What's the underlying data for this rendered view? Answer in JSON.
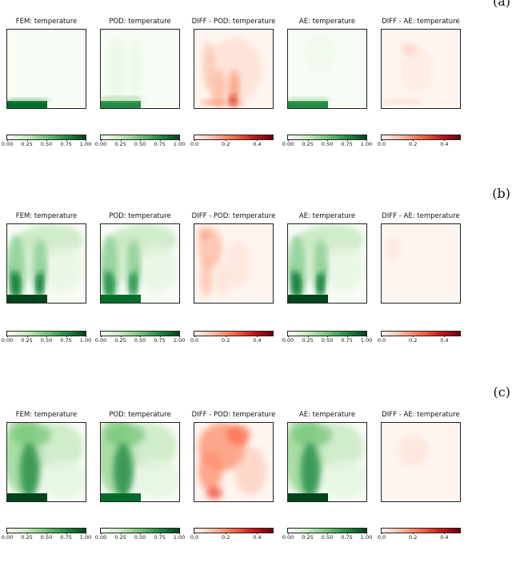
{
  "rows": [
    {
      "label": "(a)",
      "panels": [
        {
          "title": "FEM: temperature",
          "cmap": "green",
          "ticks": [
            "0.00",
            "0.25",
            "0.50",
            "0.75",
            "1.00"
          ],
          "pattern": "a-fem"
        },
        {
          "title": "POD: temperature",
          "cmap": "green",
          "ticks": [
            "0.00",
            "0.25",
            "0.50",
            "0.75",
            "1.00"
          ],
          "pattern": "a-pod"
        },
        {
          "title": "DIFF - POD: temperature",
          "cmap": "red",
          "ticks": [
            "0.0",
            "0.2",
            "0.4"
          ],
          "pattern": "a-diffpod"
        },
        {
          "title": "AE: temperature",
          "cmap": "green",
          "ticks": [
            "0.00",
            "0.25",
            "0.50",
            "0.75",
            "1.00"
          ],
          "pattern": "a-ae"
        },
        {
          "title": "DIFF - AE: temperature",
          "cmap": "red",
          "ticks": [
            "0.0",
            "0.2",
            "0.4"
          ],
          "pattern": "a-diffae"
        }
      ]
    },
    {
      "label": "(b)",
      "panels": [
        {
          "title": "FEM: temperature",
          "cmap": "green",
          "ticks": [
            "0.00",
            "0.25",
            "0.50",
            "0.75",
            "1.00"
          ],
          "pattern": "b-fem"
        },
        {
          "title": "POD: temperature",
          "cmap": "green",
          "ticks": [
            "0.00",
            "0.25",
            "0.50",
            "0.75",
            "1.00"
          ],
          "pattern": "b-pod"
        },
        {
          "title": "DIFF - POD: temperature",
          "cmap": "red",
          "ticks": [
            "0.0",
            "0.2",
            "0.4"
          ],
          "pattern": "b-diffpod"
        },
        {
          "title": "AE: temperature",
          "cmap": "green",
          "ticks": [
            "0.00",
            "0.25",
            "0.50",
            "0.75",
            "1.00"
          ],
          "pattern": "b-ae"
        },
        {
          "title": "DIFF - AE: temperature",
          "cmap": "red",
          "ticks": [
            "0.0",
            "0.2",
            "0.4"
          ],
          "pattern": "b-diffae"
        }
      ]
    },
    {
      "label": "(c)",
      "panels": [
        {
          "title": "FEM: temperature",
          "cmap": "green",
          "ticks": [
            "0.00",
            "0.25",
            "0.50",
            "0.75",
            "1.00"
          ],
          "pattern": "c-fem"
        },
        {
          "title": "POD: temperature",
          "cmap": "green",
          "ticks": [
            "0.00",
            "0.25",
            "0.50",
            "0.75",
            "1.00"
          ],
          "pattern": "c-pod"
        },
        {
          "title": "DIFF - POD: temperature",
          "cmap": "red",
          "ticks": [
            "0.0",
            "0.2",
            "0.4"
          ],
          "pattern": "c-diffpod"
        },
        {
          "title": "AE: temperature",
          "cmap": "green",
          "ticks": [
            "0.00",
            "0.25",
            "0.50",
            "0.75",
            "1.00"
          ],
          "pattern": "c-ae"
        },
        {
          "title": "DIFF - AE: temperature",
          "cmap": "red",
          "ticks": [
            "0.0",
            "0.2",
            "0.4"
          ],
          "pattern": "c-diffae"
        }
      ]
    }
  ],
  "colormaps": {
    "green": {
      "range": [
        0.0,
        1.0
      ],
      "colors": [
        "#f7fcf5",
        "#c7e9c0",
        "#74c476",
        "#238b45",
        "#00441b"
      ]
    },
    "red": {
      "range": [
        0.0,
        0.5
      ],
      "colors": [
        "#fff5f0",
        "#fcbba1",
        "#fb6a4a",
        "#cb181d",
        "#67000d"
      ]
    }
  }
}
